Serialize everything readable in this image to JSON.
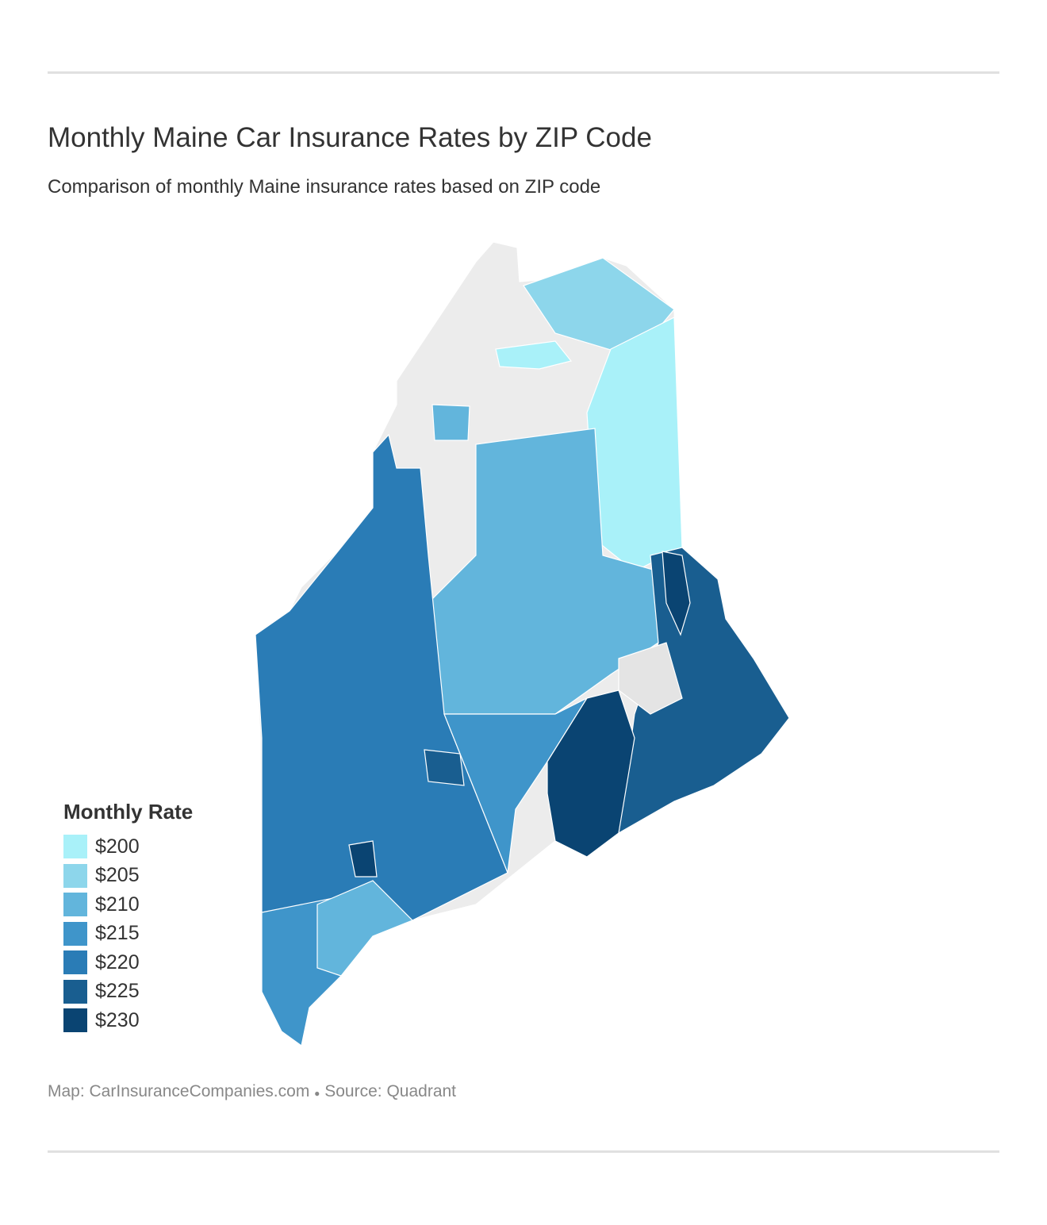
{
  "header": {
    "title": "Monthly Maine Car Insurance Rates by ZIP Code",
    "subtitle": "Comparison of monthly Maine insurance rates based on ZIP code"
  },
  "legend": {
    "title": "Monthly Rate",
    "items": [
      {
        "label": "$200",
        "color": "#a9f1f9"
      },
      {
        "label": "$205",
        "color": "#8dd6eb"
      },
      {
        "label": "$210",
        "color": "#62b5dc"
      },
      {
        "label": "$215",
        "color": "#3f95ca"
      },
      {
        "label": "$220",
        "color": "#2a7cb6"
      },
      {
        "label": "$225",
        "color": "#195e90"
      },
      {
        "label": "$230",
        "color": "#0a4472"
      }
    ]
  },
  "footer": {
    "map": "Map: CarInsuranceCompanies.com",
    "source": "Source: Quadrant"
  }
}
